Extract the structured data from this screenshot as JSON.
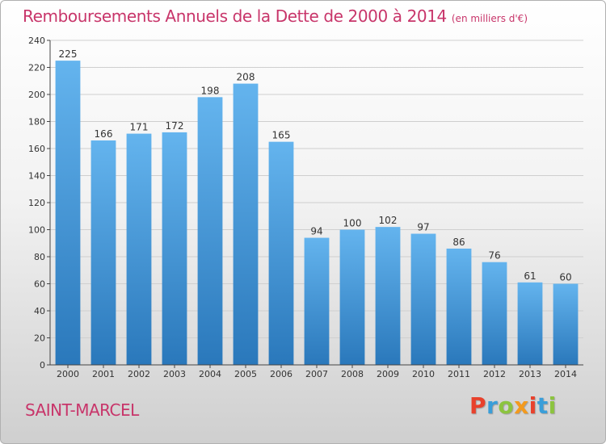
{
  "header": {
    "title": "Remboursements Annuels de la Dette de 2000 à 2014",
    "unit": "(en milliers d'€)"
  },
  "footer": {
    "city": "SAINT-MARCEL",
    "brand": "Proxiti",
    "brand_colors": [
      "#e8412c",
      "#3a9ed9",
      "#8cc43f",
      "#f39a1d",
      "#e8412c",
      "#3a9ed9",
      "#8cc43f"
    ]
  },
  "colors": {
    "title": "#c8356a",
    "bar_top": "#64b4ee",
    "bar_bottom": "#2a78bb",
    "grid": "#cfcfcf"
  },
  "chart_data": {
    "type": "bar",
    "title": "Remboursements Annuels de la Dette de 2000 à 2014",
    "categories": [
      "2000",
      "2001",
      "2002",
      "2003",
      "2004",
      "2005",
      "2006",
      "2007",
      "2008",
      "2009",
      "2010",
      "2011",
      "2012",
      "2013",
      "2014"
    ],
    "values": [
      225,
      166,
      171,
      172,
      198,
      208,
      165,
      94,
      100,
      102,
      97,
      86,
      76,
      61,
      60
    ],
    "ylim": [
      0,
      240
    ],
    "yticks": [
      0,
      20,
      40,
      60,
      80,
      100,
      120,
      140,
      160,
      180,
      200,
      220,
      240
    ],
    "grid": true,
    "data_labels": true
  }
}
